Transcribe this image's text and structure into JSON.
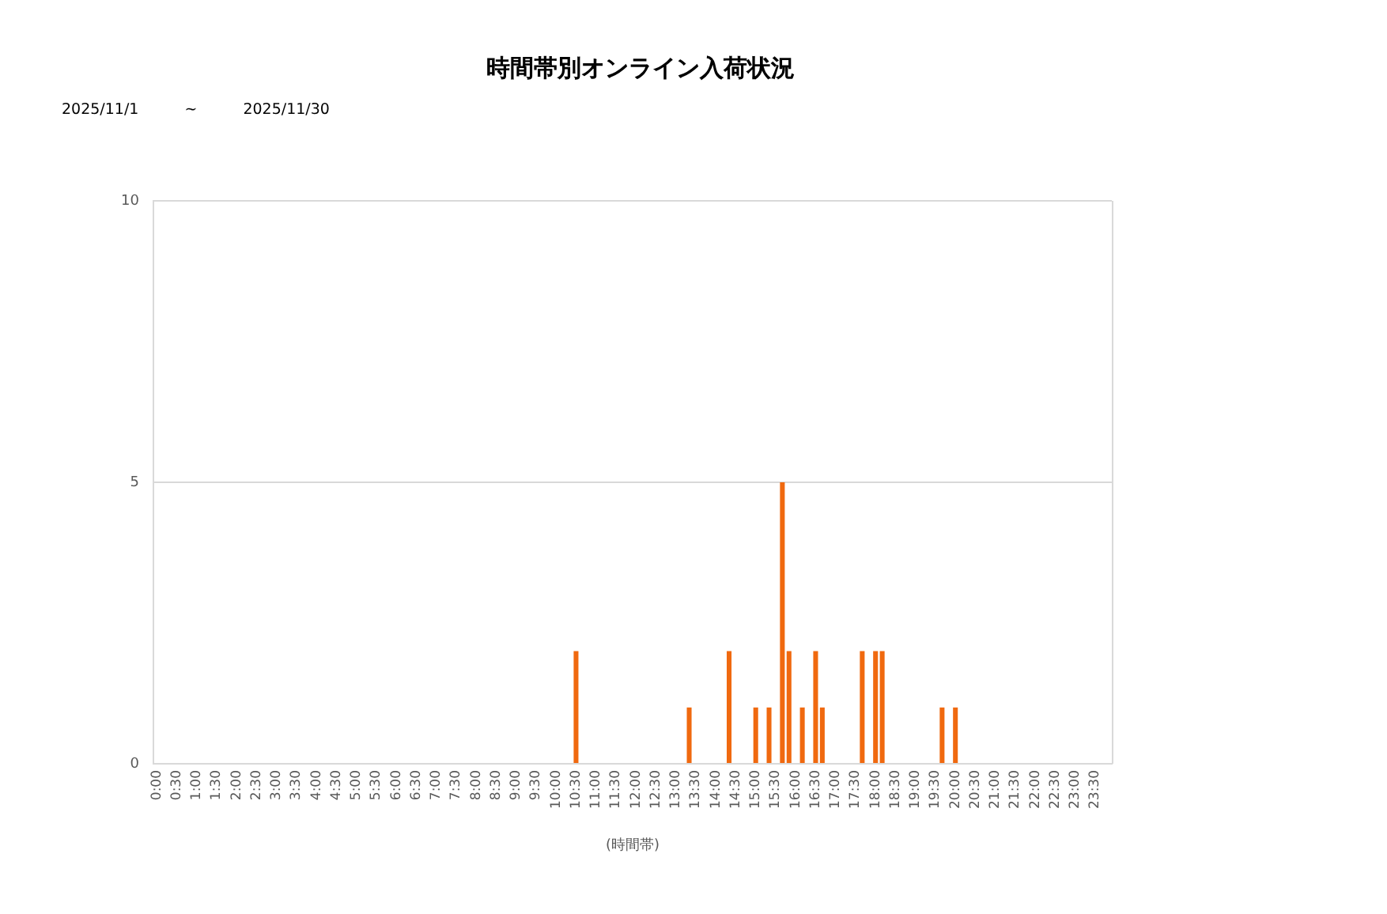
{
  "chart_data": {
    "type": "bar",
    "title": "時間帯別オンライン入荷状況",
    "subtitle": "2025/11/1 ~ 2025/11/30",
    "xlabel": "(時間帯)",
    "categories": [
      "0:00",
      null,
      null,
      "0:30",
      null,
      null,
      "1:00",
      null,
      null,
      "1:30",
      null,
      null,
      "2:00",
      null,
      null,
      "2:30",
      null,
      null,
      "3:00",
      null,
      null,
      "3:30",
      null,
      null,
      "4:00",
      null,
      null,
      "4:30",
      null,
      null,
      "5:00",
      null,
      null,
      "5:30",
      null,
      null,
      "6:00",
      null,
      null,
      "6:30",
      null,
      null,
      "7:00",
      null,
      null,
      "7:30",
      null,
      null,
      "8:00",
      null,
      null,
      "8:30",
      null,
      null,
      "9:00",
      null,
      null,
      "9:30",
      null,
      null,
      "10:00",
      null,
      null,
      "10:30",
      null,
      null,
      "11:00",
      null,
      null,
      "11:30",
      null,
      null,
      "12:00",
      null,
      null,
      "12:30",
      null,
      null,
      "13:00",
      null,
      null,
      "13:30",
      null,
      null,
      "14:00",
      null,
      null,
      "14:30",
      null,
      null,
      "15:00",
      null,
      null,
      "15:30",
      null,
      null,
      "16:00",
      null,
      null,
      "16:30",
      null,
      null,
      "17:00",
      null,
      null,
      "17:30",
      null,
      null,
      "18:00",
      null,
      null,
      "18:30",
      null,
      null,
      "19:00",
      null,
      null,
      "19:30",
      null,
      null,
      "20:00",
      null,
      null,
      "20:30",
      null,
      null,
      "21:00",
      null,
      null,
      "21:30",
      null,
      null,
      "22:00",
      null,
      null,
      "22:30",
      null,
      null,
      "23:00",
      null,
      null,
      "23:30",
      null,
      null
    ],
    "values": [
      0,
      0,
      0,
      0,
      0,
      0,
      0,
      0,
      0,
      0,
      0,
      0,
      0,
      0,
      0,
      0,
      0,
      0,
      0,
      0,
      0,
      0,
      0,
      0,
      0,
      0,
      0,
      0,
      0,
      0,
      0,
      0,
      0,
      0,
      0,
      0,
      0,
      0,
      0,
      0,
      0,
      0,
      0,
      0,
      0,
      0,
      0,
      0,
      0,
      0,
      0,
      0,
      0,
      0,
      0,
      0,
      0,
      0,
      0,
      0,
      0,
      0,
      0,
      2,
      0,
      0,
      0,
      0,
      0,
      0,
      0,
      0,
      0,
      0,
      0,
      0,
      0,
      0,
      0,
      0,
      1,
      0,
      0,
      0,
      0,
      0,
      2,
      0,
      0,
      0,
      1,
      0,
      1,
      0,
      5,
      2,
      0,
      1,
      0,
      2,
      1,
      0,
      0,
      0,
      0,
      0,
      2,
      0,
      2,
      2,
      0,
      0,
      0,
      0,
      0,
      0,
      0,
      0,
      1,
      0,
      1,
      0,
      0,
      0,
      0,
      0,
      0,
      0,
      0,
      0,
      0,
      0,
      0,
      0,
      0,
      0,
      0,
      0,
      0,
      0,
      0,
      0,
      0,
      0
    ],
    "color": "#f0690f",
    "ylim": [
      0,
      10
    ],
    "yticks": [
      0,
      5,
      10
    ],
    "grid": "y"
  }
}
